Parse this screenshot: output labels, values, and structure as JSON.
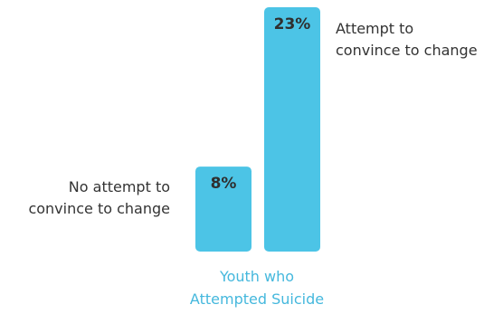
{
  "chart_data": {
    "type": "bar",
    "category": "Youth who Attempted Suicide",
    "category_lines": [
      "Youth who",
      "Attempted Suicide"
    ],
    "series": [
      {
        "label_lines": [
          "No attempt to",
          "convince to change"
        ],
        "value": 8,
        "value_label": "8%"
      },
      {
        "label_lines": [
          "Attempt to",
          "convince to change"
        ],
        "value": 23,
        "value_label": "23%"
      }
    ],
    "ylim": [
      0,
      23
    ],
    "grid": false,
    "legend": "none",
    "colors": {
      "bar": "#4cc4e6",
      "category_text": "#45b8dd"
    }
  }
}
